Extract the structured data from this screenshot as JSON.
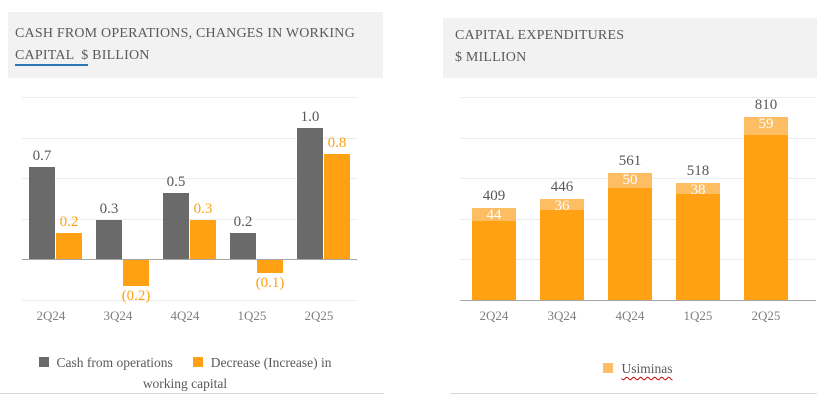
{
  "left_panel": {
    "title_line1": "CASH FROM OPERATIONS, CHANGES IN WORKING",
    "title_underlined": "CAPITAL  $",
    "title_rest": " BILLION"
  },
  "right_panel": {
    "title_line1": "CAPITAL EXPENDITURES",
    "title_line2": "$ MILLION"
  },
  "colors": {
    "gray_bar": "#6a6a6a",
    "orange_bar": "#ffa113",
    "light_orange": "#fcbd63",
    "header_bg": "#f2f2f2",
    "title_text": "#595959",
    "axis_label": "#7f7f7f",
    "gridline": "#ececec",
    "axis_line": "#a6a6a6",
    "underline_blue": "#2e75b6",
    "spellcheck_red": "#c00000"
  },
  "chart_data": [
    {
      "type": "bar",
      "title": "CASH FROM OPERATIONS, CHANGES IN WORKING CAPITAL $ BILLION",
      "categories": [
        "2Q24",
        "3Q24",
        "4Q24",
        "1Q25",
        "2Q25"
      ],
      "series": [
        {
          "name": "Cash from operations",
          "color": "#6a6a6a",
          "values": [
            0.7,
            0.3,
            0.5,
            0.2,
            1.0
          ],
          "labels": [
            "0.7",
            "0.3",
            "0.5",
            "0.2",
            "1.0"
          ]
        },
        {
          "name": "Decrease (Increase) in working capital",
          "color": "#ffa113",
          "values": [
            0.2,
            -0.2,
            0.3,
            -0.1,
            0.8
          ],
          "labels": [
            "0.2",
            "(0.2)",
            "0.3",
            "(0.1)",
            "0.8"
          ]
        }
      ],
      "ylim": [
        -0.3,
        1.1
      ],
      "grid": true,
      "legend_position": "bottom"
    },
    {
      "type": "stacked-bar",
      "title": "CAPITAL EXPENDITURES $ MILLION",
      "categories": [
        "2Q24",
        "3Q24",
        "4Q24",
        "1Q25",
        "2Q25"
      ],
      "totals": [
        409,
        446,
        561,
        518,
        810
      ],
      "total_labels": [
        "409",
        "446",
        "561",
        "518",
        "810"
      ],
      "bar_color": "#ffa113",
      "top_segment": {
        "name": "Usiminas",
        "color": "#fcbd63",
        "values": [
          44,
          36,
          50,
          38,
          59
        ],
        "labels": [
          "44",
          "36",
          "50",
          "38",
          "59"
        ]
      },
      "ylim": [
        0,
        900
      ],
      "grid": true,
      "legend_position": "bottom"
    }
  ]
}
